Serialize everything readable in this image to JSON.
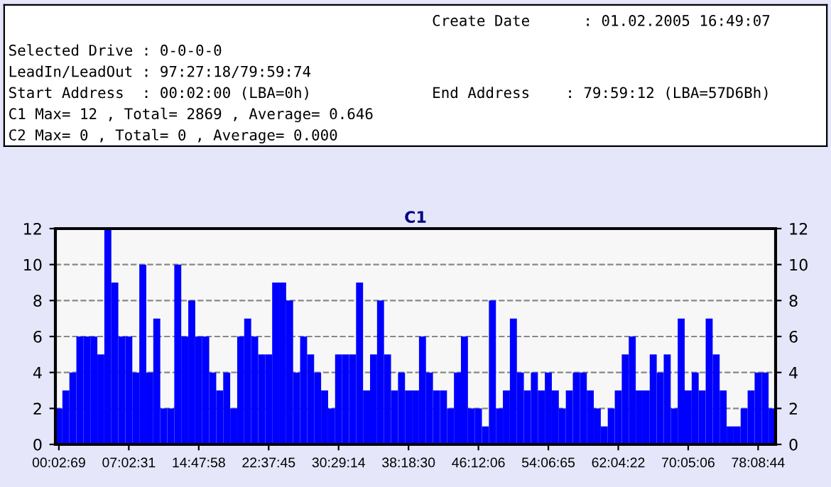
{
  "chart_data": {
    "type": "bar",
    "title": "C1",
    "annotations": [
      "Create Date      : 01.02.2005 16:49:07",
      "Selected Drive : 0-0-0-0",
      "LeadIn/LeadOut : 97:27:18/79:59:74",
      "Start Address  : 00:02:00 (LBA=0h)",
      "End Address    : 79:59:12 (LBA=57D6Bh)",
      "C1 Max= 12 , Total= 2869 , Average= 0.646",
      "C2 Max= 0 , Total= 0 , Average= 0.000"
    ],
    "categories": [
      "00:02:69",
      null,
      null,
      null,
      null,
      null,
      null,
      null,
      null,
      null,
      "07:02:31",
      null,
      null,
      null,
      null,
      null,
      null,
      null,
      null,
      null,
      "14:47:58",
      null,
      null,
      null,
      null,
      null,
      null,
      null,
      null,
      null,
      "22:37:45",
      null,
      null,
      null,
      null,
      null,
      null,
      null,
      null,
      null,
      "30:29:14",
      null,
      null,
      null,
      null,
      null,
      null,
      null,
      null,
      null,
      "38:18:30",
      null,
      null,
      null,
      null,
      null,
      null,
      null,
      null,
      null,
      "46:12:06",
      null,
      null,
      null,
      null,
      null,
      null,
      null,
      null,
      null,
      "54:06:65",
      null,
      null,
      null,
      null,
      null,
      null,
      null,
      null,
      null,
      "62:04:22",
      null,
      null,
      null,
      null,
      null,
      null,
      null,
      null,
      null,
      "70:05:06",
      null,
      null,
      null,
      null,
      null,
      null,
      null,
      null,
      null,
      "78:08:44",
      null,
      null
    ],
    "values": [
      2,
      3,
      4,
      6,
      6,
      6,
      5,
      12,
      9,
      6,
      6,
      4,
      10,
      4,
      7,
      2,
      2,
      10,
      6,
      8,
      6,
      6,
      4,
      3,
      4,
      2,
      6,
      7,
      6,
      5,
      5,
      9,
      9,
      8,
      4,
      6,
      5,
      4,
      3,
      2,
      5,
      5,
      5,
      9,
      3,
      5,
      8,
      5,
      3,
      4,
      3,
      3,
      6,
      4,
      3,
      3,
      2,
      4,
      6,
      2,
      2,
      1,
      8,
      2,
      3,
      7,
      4,
      3,
      4,
      3,
      4,
      3,
      2,
      3,
      4,
      4,
      3,
      2,
      1,
      2,
      3,
      5,
      6,
      3,
      3,
      5,
      4,
      5,
      2,
      7,
      3,
      4,
      3,
      7,
      5,
      3,
      1,
      1,
      2,
      3,
      4,
      4,
      2
    ],
    "color": "#0000ff",
    "ylim": [
      0,
      12
    ],
    "yticks": [
      0,
      2,
      4,
      6,
      8,
      10,
      12
    ],
    "y2lim": [
      0,
      12
    ],
    "y2ticks": [
      0,
      2,
      4,
      6,
      8,
      10,
      12
    ],
    "grid": "y"
  }
}
